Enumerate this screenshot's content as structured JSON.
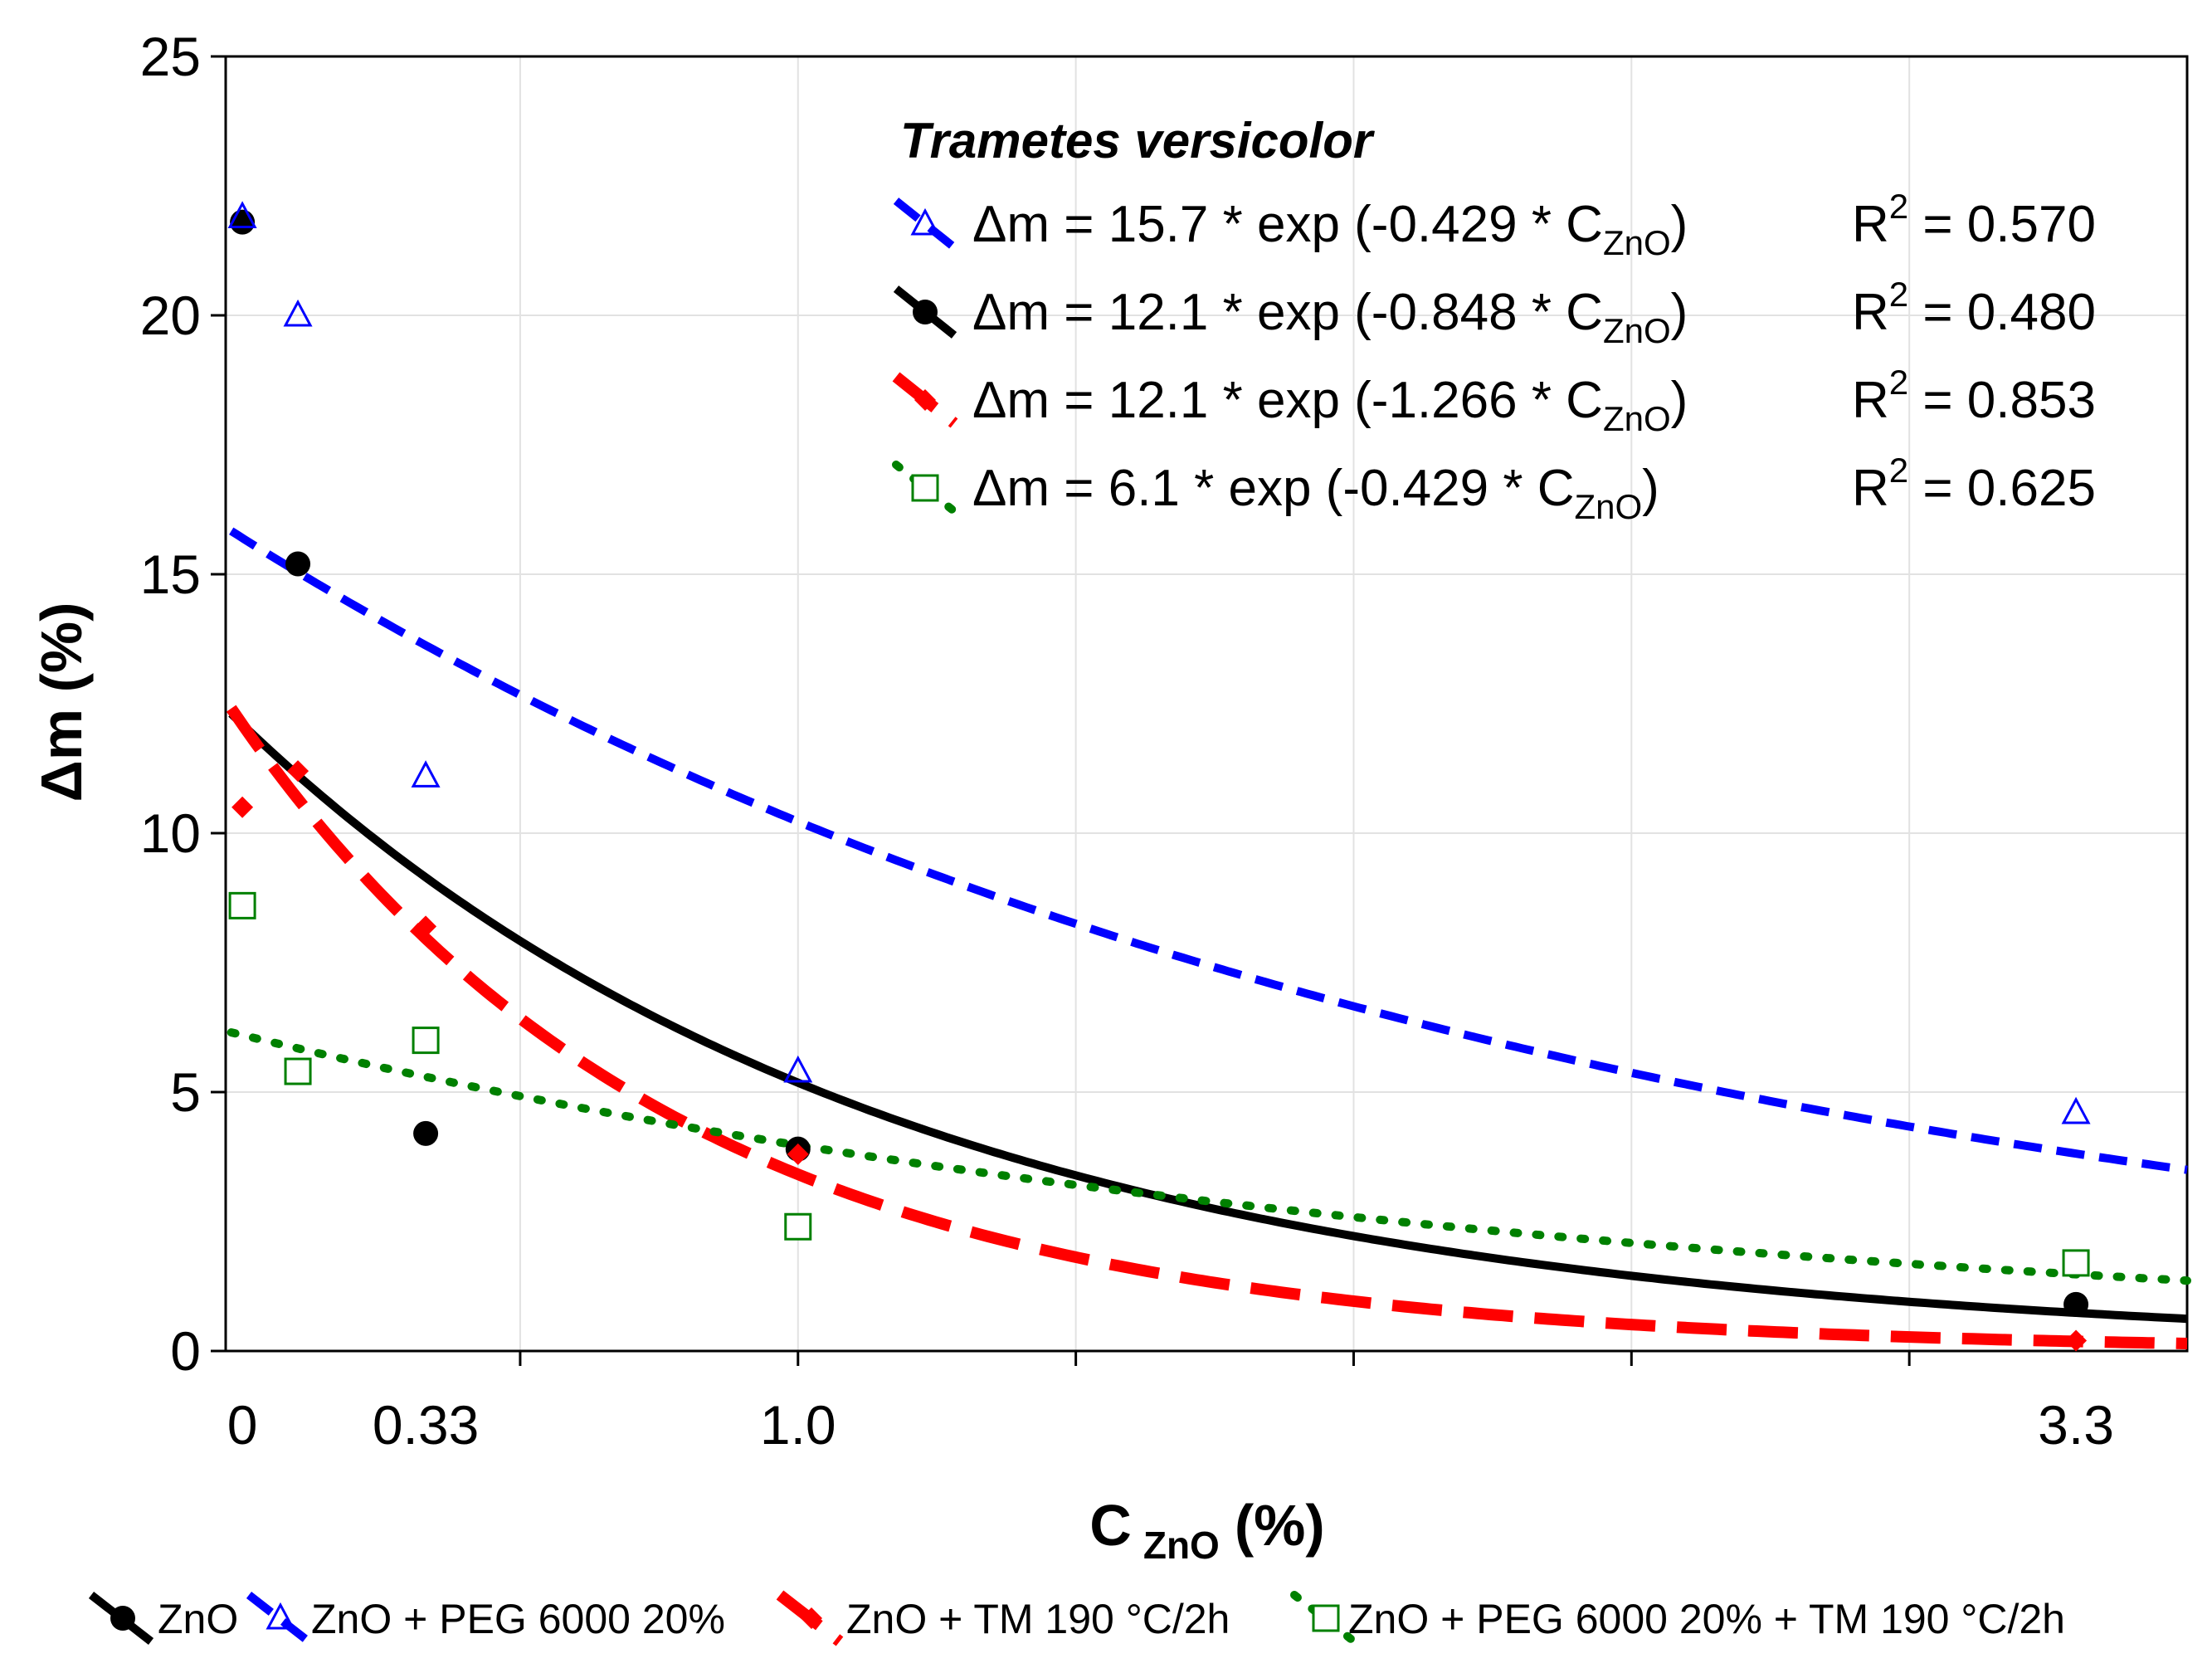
{
  "chart_data": {
    "type": "scatter",
    "xlabel": "C",
    "xlabel_sub": "ZnO",
    "xlabel_unit": "(%)",
    "ylabel": "Δm (%)",
    "xlim": [
      -0.03,
      3.5
    ],
    "ylim": [
      0,
      25
    ],
    "x_gridlines": [
      0.5,
      1.0,
      1.5,
      2.0,
      2.5,
      3.0
    ],
    "y_ticks": [
      0,
      5,
      10,
      15,
      20,
      25
    ],
    "x_tick_labels": [
      {
        "value": 0,
        "label": "0"
      },
      {
        "value": 0.33,
        "label": "0.33"
      },
      {
        "value": 1.0,
        "label": "1.0"
      },
      {
        "value": 3.3,
        "label": "3.3"
      }
    ],
    "fit_legend_title": "Trametes versicolor",
    "series": [
      {
        "name": "ZnO",
        "color": "#000000",
        "marker": "circle",
        "line_style": "solid",
        "fit": {
          "a": 12.1,
          "b": -0.848
        },
        "equation_prefix": "Δm = 12.1 * exp (-0.848 * C",
        "equation_suffix": ")",
        "r2_label": "R",
        "r2_value": " = 0.480",
        "x": [
          0,
          0.1,
          0.33,
          1.0,
          3.3
        ],
        "y": [
          21.8,
          15.2,
          4.2,
          3.9,
          0.9
        ]
      },
      {
        "name": "ZnO +  PEG 6000 20%",
        "color": "#0000ff",
        "marker": "triangle",
        "line_style": "dash",
        "fit": {
          "a": 15.7,
          "b": -0.429
        },
        "equation_prefix": "Δm = 15.7 * exp (-0.429 * C",
        "equation_suffix": ")",
        "r2_label": "R",
        "r2_value": " = 0.570",
        "x": [
          0,
          0.1,
          0.33,
          1.0,
          3.3
        ],
        "y": [
          21.9,
          20.0,
          11.1,
          5.4,
          4.6
        ]
      },
      {
        "name": "ZnO + TM 190 °C/2h",
        "color": "#ff0000",
        "marker": "diamond",
        "line_style": "longdash",
        "fit": {
          "a": 12.1,
          "b": -1.266
        },
        "equation_prefix": "Δm = 12.1 * exp (-1.266 * C",
        "equation_suffix": ")",
        "r2_label": "R",
        "r2_value": " = 0.853",
        "x": [
          0,
          0.1,
          0.33,
          1.0,
          3.3
        ],
        "y": [
          10.5,
          11.2,
          8.2,
          3.8,
          0.2
        ]
      },
      {
        "name": "ZnO + PEG 6000 20% + TM 190 °C/2h",
        "color": "#008000",
        "marker": "square",
        "line_style": "dot",
        "fit": {
          "a": 6.1,
          "b": -0.429
        },
        "equation_prefix": "Δm =   6.1 * exp (-0.429 * C",
        "equation_suffix": ")",
        "r2_label": "R",
        "r2_value": " = 0.625",
        "x": [
          0,
          0.1,
          0.33,
          1.0,
          3.3
        ],
        "y": [
          8.6,
          5.4,
          6.0,
          2.4,
          1.7
        ]
      }
    ],
    "legend_order_fits": [
      1,
      0,
      2,
      3
    ],
    "legend_order_bottom": [
      0,
      1,
      2,
      3
    ],
    "sub_label": "ZnO",
    "superscript": "2"
  }
}
